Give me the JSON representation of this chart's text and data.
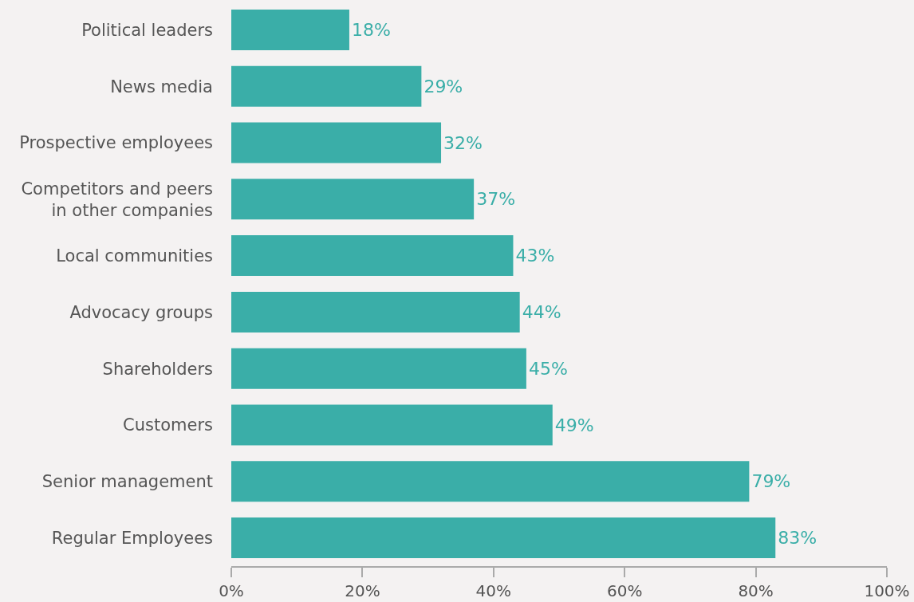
{
  "chart_data": {
    "type": "bar",
    "orientation": "horizontal",
    "categories": [
      "Political leaders",
      "News media",
      "Prospective employees",
      "Competitors and peers\nin other companies",
      "Local communities",
      "Advocacy groups",
      "Shareholders",
      "Customers",
      "Senior management",
      "Regular Employees"
    ],
    "values": [
      18,
      29,
      32,
      37,
      43,
      44,
      45,
      49,
      79,
      83
    ],
    "value_labels": [
      "18%",
      "29%",
      "32%",
      "37%",
      "43%",
      "44%",
      "45%",
      "49%",
      "79%",
      "83%"
    ],
    "color": "#3aaea8",
    "xlim": [
      0,
      100
    ],
    "xticks": [
      {
        "value": 0,
        "label": "0%"
      },
      {
        "value": 20,
        "label": "20%"
      },
      {
        "value": 40,
        "label": "40%"
      },
      {
        "value": 60,
        "label": "60%"
      },
      {
        "value": 80,
        "label": "80%"
      },
      {
        "value": 100,
        "label": "100%"
      }
    ],
    "grid": false
  }
}
